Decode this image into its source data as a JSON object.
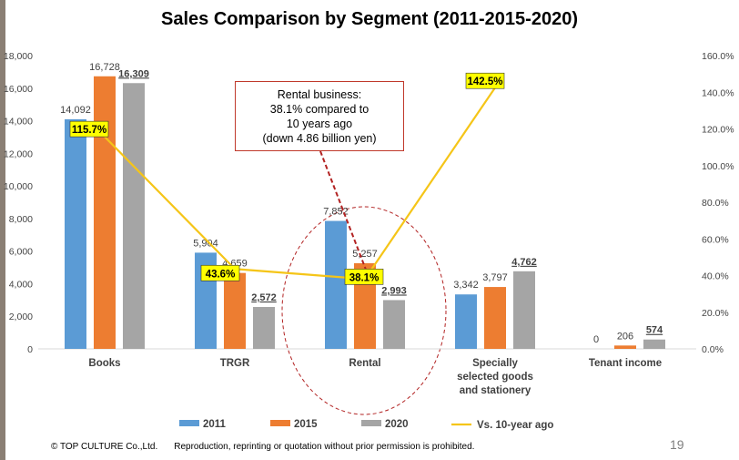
{
  "page": {
    "title": "Sales Comparison by Segment (2011-2015-2020)",
    "footer_copyright": "© TOP CULTURE Co.,Ltd.",
    "footer_notice": "Reproduction, reprinting or quotation without prior permission is prohibited.",
    "page_number": "19"
  },
  "annotation": {
    "lines": [
      "Rental business:",
      "38.1% compared to",
      "10 years ago",
      "(down 4.86 billion yen)"
    ]
  },
  "chart_data": {
    "type": "bar",
    "title": "Sales Comparison by Segment (2011-2015-2020)",
    "categories": [
      [
        "Books"
      ],
      [
        "TRGR"
      ],
      [
        "Rental"
      ],
      [
        "Specially",
        "selected goods",
        "and stationery"
      ],
      [
        "Tenant income"
      ]
    ],
    "series": [
      {
        "name": "2011",
        "color": "#5b9bd5",
        "values": [
          14092,
          5904,
          7852,
          3342,
          0
        ],
        "labels": [
          "14,092",
          "5,904",
          "7,852",
          "3,342",
          "0"
        ]
      },
      {
        "name": "2015",
        "color": "#ed7d31",
        "values": [
          16728,
          4659,
          5257,
          3797,
          206
        ],
        "labels": [
          "16,728",
          "4,659",
          "5,257",
          "3,797",
          "206"
        ]
      },
      {
        "name": "2020",
        "color": "#a5a5a5",
        "values": [
          16309,
          2572,
          2993,
          4762,
          574
        ],
        "labels": [
          "16,309",
          "2,572",
          "2,993",
          "4,762",
          "574"
        ]
      }
    ],
    "line_series": {
      "name": "Vs. 10-year ago",
      "color": "#f5c518",
      "values": [
        115.7,
        43.6,
        38.1,
        142.5
      ],
      "labels": [
        "115.7%",
        "43.6%",
        "38.1%",
        "142.5%"
      ]
    },
    "left_axis": {
      "ylim": [
        0,
        18000
      ],
      "ticks": [
        0,
        2000,
        4000,
        6000,
        8000,
        10000,
        12000,
        14000,
        16000,
        18000
      ],
      "tick_labels": [
        "0",
        "2,000",
        "4,000",
        "6,000",
        "8,000",
        "10,000",
        "12,000",
        "14,000",
        "16,000",
        "18,000"
      ]
    },
    "right_axis": {
      "ylim": [
        0,
        160
      ],
      "ticks": [
        0,
        20,
        40,
        60,
        80,
        100,
        120,
        140,
        160
      ],
      "tick_labels": [
        "0.0%",
        "20.0%",
        "40.0%",
        "60.0%",
        "80.0%",
        "100.0%",
        "120.0%",
        "140.0%",
        "160.0%"
      ]
    },
    "legend_position": "bottom",
    "grid": false
  }
}
